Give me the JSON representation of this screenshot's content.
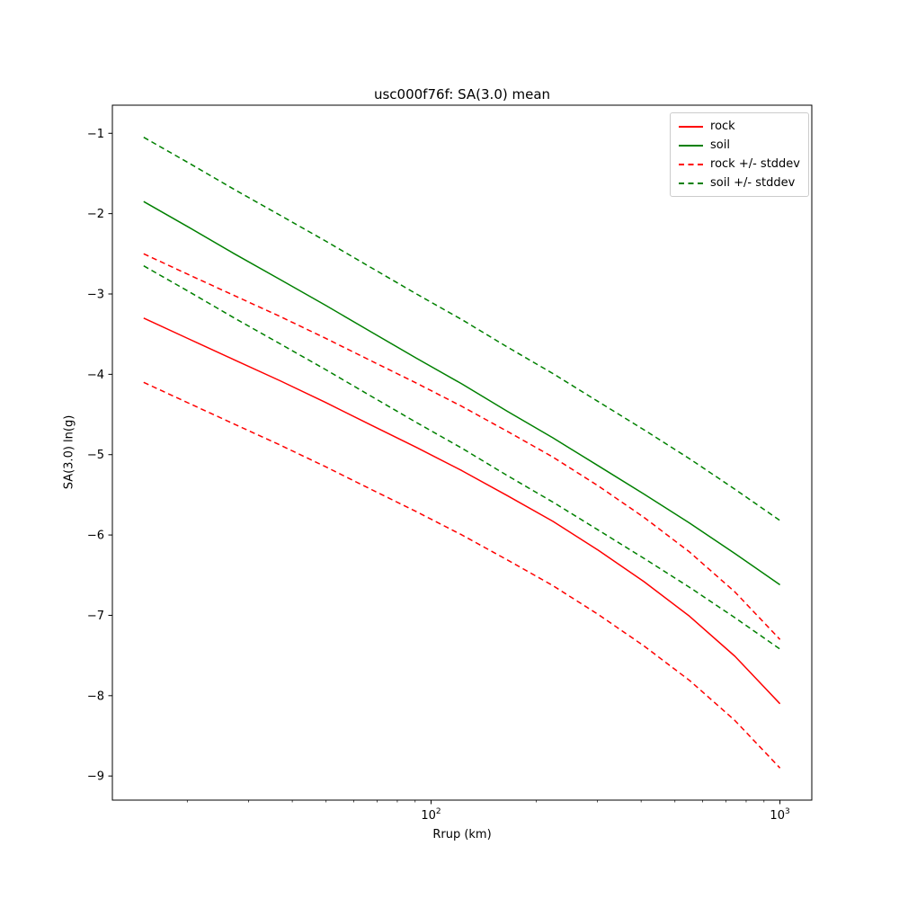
{
  "title": "usc000f76f: SA(3.0) mean",
  "xlabel": "Rrup (km)",
  "ylabel": "SA(3.0) ln(g)",
  "chart_data": {
    "type": "line",
    "title": "usc000f76f: SA(3.0) mean",
    "xlabel": "Rrup (km)",
    "ylabel": "SA(3.0) ln(g)",
    "x_scale": "log",
    "y_scale": "linear",
    "grid": false,
    "xlim": [
      12.2,
      1234
    ],
    "ylim": [
      -9.3,
      -0.65
    ],
    "yticks": [
      -9,
      -8,
      -7,
      -6,
      -5,
      -4,
      -3,
      -2,
      -1
    ],
    "xticks": [
      {
        "value": 100,
        "base": "10",
        "exp": "2"
      },
      {
        "value": 1000,
        "base": "10",
        "exp": "3"
      }
    ],
    "x": [
      15.0,
      20.2,
      27.3,
      36.9,
      49.8,
      67.2,
      90.8,
      122.6,
      165.4,
      223.4,
      301.7,
      407.4,
      550.2,
      743.0,
      1000.0
    ],
    "stddev": 0.8,
    "series": [
      {
        "name": "rock",
        "style": "solid",
        "color": "#ff0000",
        "values": [
          -3.3,
          -3.56,
          -3.82,
          -4.08,
          -4.35,
          -4.63,
          -4.91,
          -5.2,
          -5.51,
          -5.83,
          -6.19,
          -6.58,
          -7.01,
          -7.51,
          -8.1
        ]
      },
      {
        "name": "soil",
        "style": "solid",
        "color": "#008000",
        "values": [
          -1.85,
          -2.17,
          -2.5,
          -2.82,
          -3.14,
          -3.47,
          -3.8,
          -4.12,
          -4.46,
          -4.79,
          -5.14,
          -5.49,
          -5.85,
          -6.23,
          -6.62
        ]
      },
      {
        "name": "rock + stddev",
        "style": "dashed",
        "color": "#ff0000",
        "values": [
          -2.5,
          -2.76,
          -3.02,
          -3.28,
          -3.55,
          -3.83,
          -4.11,
          -4.4,
          -4.71,
          -5.03,
          -5.39,
          -5.78,
          -6.21,
          -6.71,
          -7.3
        ]
      },
      {
        "name": "rock - stddev",
        "style": "dashed",
        "color": "#ff0000",
        "values": [
          -4.1,
          -4.36,
          -4.62,
          -4.88,
          -5.15,
          -5.43,
          -5.71,
          -6.0,
          -6.31,
          -6.63,
          -6.99,
          -7.38,
          -7.81,
          -8.31,
          -8.9
        ]
      },
      {
        "name": "soil + stddev",
        "style": "dashed",
        "color": "#008000",
        "values": [
          -1.05,
          -1.37,
          -1.7,
          -2.02,
          -2.34,
          -2.67,
          -3.0,
          -3.32,
          -3.66,
          -3.99,
          -4.34,
          -4.69,
          -5.05,
          -5.43,
          -5.82
        ]
      },
      {
        "name": "soil - stddev",
        "style": "dashed",
        "color": "#008000",
        "values": [
          -2.65,
          -2.97,
          -3.3,
          -3.62,
          -3.94,
          -4.27,
          -4.6,
          -4.92,
          -5.26,
          -5.59,
          -5.94,
          -6.29,
          -6.65,
          -7.03,
          -7.42
        ]
      }
    ],
    "legend_position": "upper right",
    "legend": [
      {
        "label": "rock",
        "color": "#ff0000",
        "style": "solid"
      },
      {
        "label": "soil",
        "color": "#008000",
        "style": "solid"
      },
      {
        "label": "rock +/- stddev",
        "color": "#ff0000",
        "style": "dashed"
      },
      {
        "label": "soil +/- stddev",
        "color": "#008000",
        "style": "dashed"
      }
    ]
  }
}
